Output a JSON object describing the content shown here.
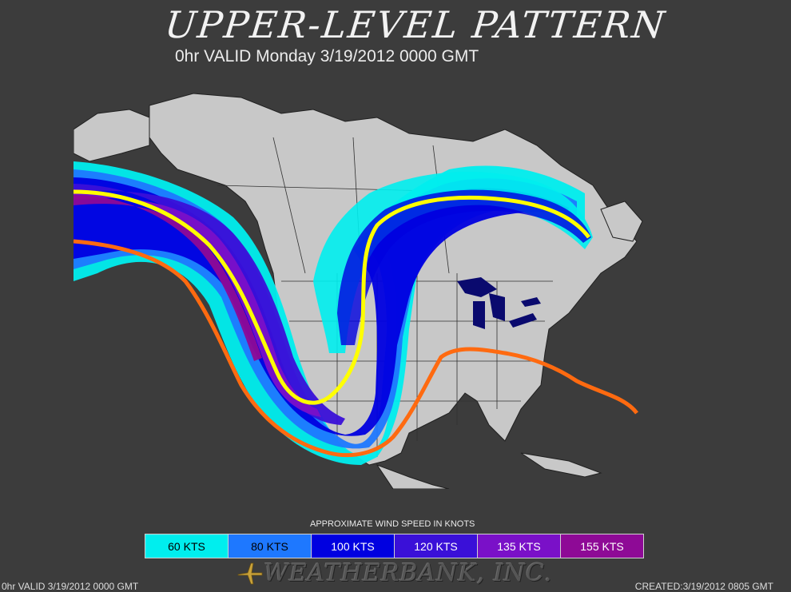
{
  "header": {
    "title": "UPPER-LEVEL PATTERN",
    "subtitle": "0hr VALID Monday 3/19/2012 0000 GMT"
  },
  "legend": {
    "title": "APPROXIMATE WIND SPEED IN KNOTS",
    "items": [
      {
        "label": "60 KTS",
        "color": "#00eeee"
      },
      {
        "label": "80 KTS",
        "color": "#1e78ff"
      },
      {
        "label": "100 KTS",
        "color": "#0000e0"
      },
      {
        "label": "120 KTS",
        "color": "#3a10d8"
      },
      {
        "label": "135 KTS",
        "color": "#7a10c8"
      },
      {
        "label": "155 KTS",
        "color": "#8e0a96"
      }
    ]
  },
  "map": {
    "land_color": "#c8c8c8",
    "ocean_color": "#3c3c3c",
    "jet_axis_color": "#ffff00",
    "subtropical_jet_color": "#ff6a10",
    "lakes_color": "#0a0a6e"
  },
  "footer": {
    "left": "0hr VALID 3/19/2012 0000 GMT",
    "brand": "WEATHERBANK, INC.",
    "right": "CREATED:3/19/2012 0805 GMT"
  }
}
